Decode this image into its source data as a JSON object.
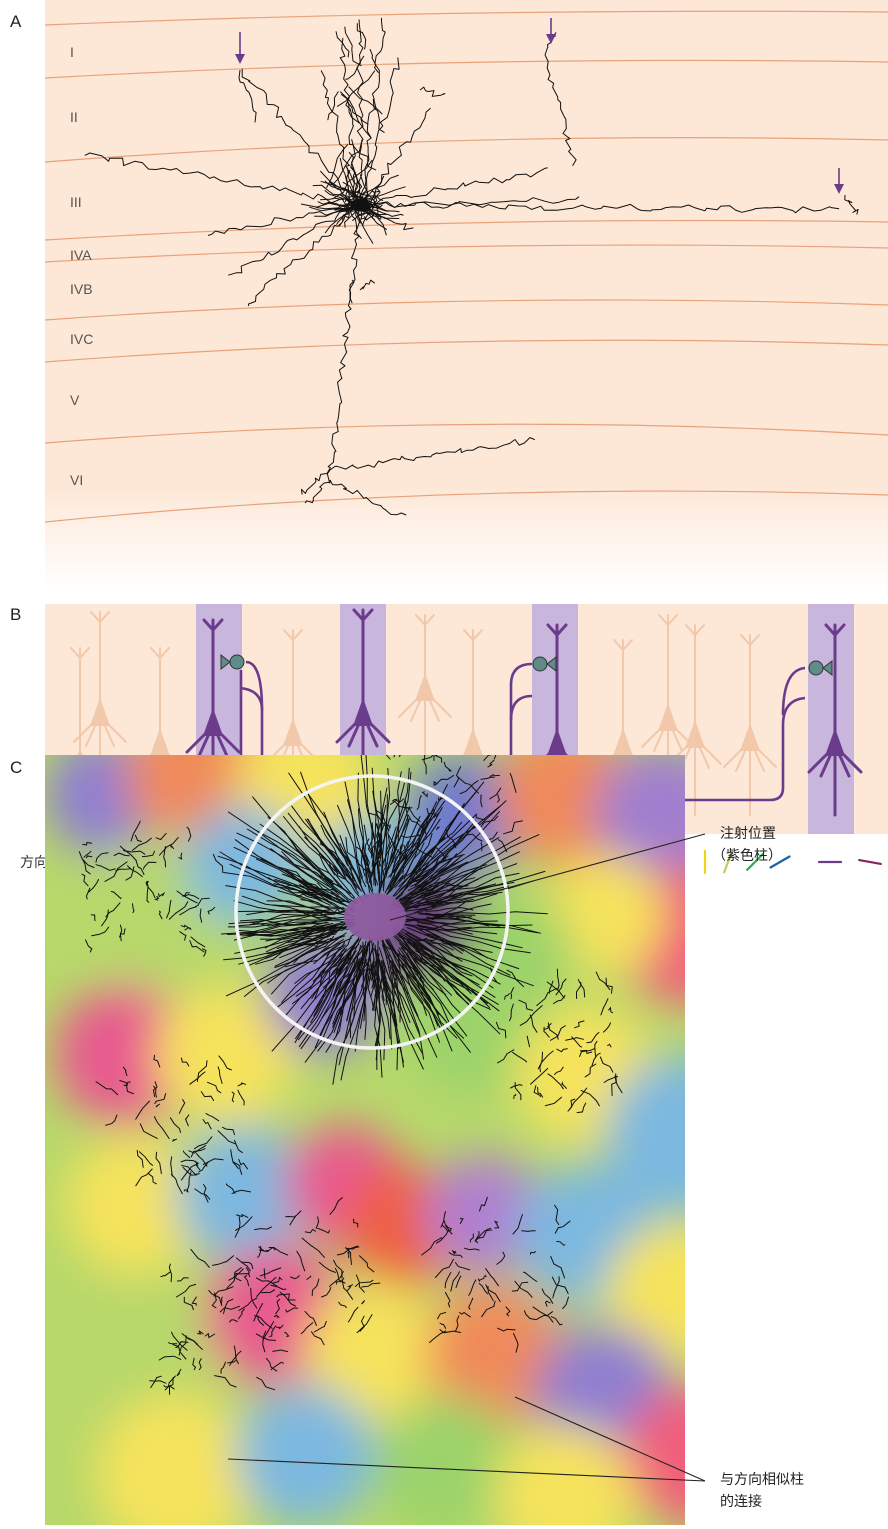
{
  "panel_a": {
    "letter": "A",
    "layers": [
      "I",
      "II",
      "III",
      "IVA",
      "IVB",
      "IVC",
      "V",
      "VI"
    ]
  },
  "panel_b": {
    "letter": "B",
    "orientation_label": "方向轴"
  },
  "panel_c": {
    "letter": "C",
    "injection_label_line1": "注射位置",
    "injection_label_line2": "（紫色柱）",
    "connection_label_line1": "与方向相似柱",
    "connection_label_line2": "的连接"
  },
  "colors": {
    "layer_bg": "#fde7d6",
    "layer_line": "#e8a27a",
    "purple": "#6b3b8c",
    "column_band": "#c8b6dc",
    "faded_neuron": "#f1c9aa"
  }
}
